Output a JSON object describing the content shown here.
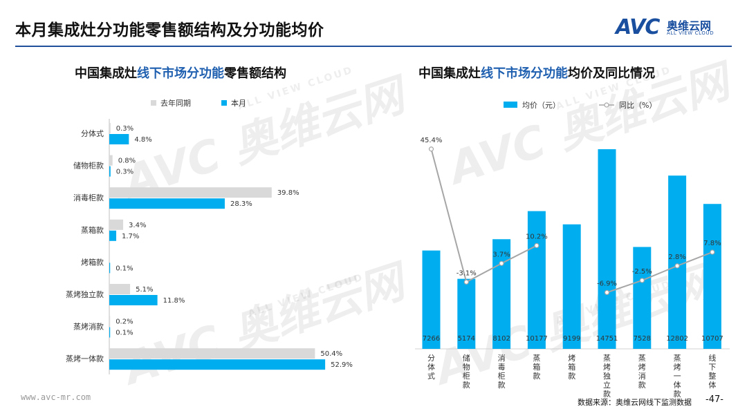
{
  "page": {
    "title": "本月集成灶分功能零售额结构及分功能均价",
    "logo_mark": "AVC",
    "logo_cn": "奥维云网",
    "logo_en": "ALL VIEW CLOUD",
    "footer_url": "www.avc-mr.com",
    "footer_source": "数据来源：奥维云网线下监测数据",
    "page_number": "-47-"
  },
  "watermark": {
    "mark": "AVC 奥维云网",
    "sub": "ALL VIEW CLOUD"
  },
  "colors": {
    "blue": "#00aeef",
    "gray": "#d9d9d9",
    "title_highlight": "#1f5fb0",
    "line": "#a6a6a6"
  },
  "left_chart": {
    "title_parts": [
      "中国集成灶",
      "线下市场分功能",
      "零售额结构"
    ]
  },
  "right_chart": {
    "title_parts": [
      "中国集成灶",
      "线下市场分功能",
      "均价及同比情况"
    ]
  },
  "chart_data": [
    {
      "type": "bar",
      "orientation": "horizontal",
      "categories": [
        "分体式",
        "储物柜款",
        "消毒柜款",
        "蒸箱款",
        "烤箱款",
        "蒸烤独立款",
        "蒸烤消款",
        "蒸烤一体款"
      ],
      "series": [
        {
          "name": "去年同期",
          "values": [
            0.3,
            0.8,
            39.8,
            3.4,
            null,
            5.1,
            0.2,
            50.4
          ],
          "labels": [
            "0.3%",
            "0.8%",
            "39.8%",
            "3.4%",
            "",
            "5.1%",
            "0.2%",
            "50.4%"
          ],
          "color": "#d9d9d9"
        },
        {
          "name": "本月",
          "values": [
            4.8,
            0.3,
            28.3,
            1.7,
            0.1,
            11.8,
            0.1,
            52.9
          ],
          "labels": [
            "4.8%",
            "0.3%",
            "28.3%",
            "1.7%",
            "0.1%",
            "11.8%",
            "0.1%",
            "52.9%"
          ],
          "color": "#00aeef"
        }
      ],
      "xlim": [
        0,
        60
      ],
      "legend": "top"
    },
    {
      "type": "bar",
      "categories": [
        "分体式",
        "储物柜款",
        "消毒柜款",
        "蒸箱款",
        "烤箱款",
        "蒸烤独立款",
        "蒸烤消款",
        "蒸烤一体款",
        "线下整体"
      ],
      "series": [
        {
          "name": "均价（元）",
          "kind": "bar",
          "values": [
            7266,
            5174,
            8102,
            10177,
            9199,
            14751,
            7528,
            12802,
            10707
          ],
          "labels": [
            "7266",
            "5174",
            "8102",
            "10177",
            "9199",
            "14751",
            "7528",
            "12802",
            "10707"
          ],
          "color": "#00aeef"
        },
        {
          "name": "同比（%）",
          "kind": "line",
          "values": [
            45.4,
            -3.1,
            3.7,
            10.2,
            null,
            -6.9,
            -2.5,
            2.8,
            7.8
          ],
          "labels": [
            "45.4%",
            "-3.1%",
            "3.7%",
            "10.2%",
            "",
            "-6.9%",
            "-2.5%",
            "2.8%",
            "7.8%"
          ],
          "color": "#a6a6a6"
        }
      ],
      "legend": "top"
    }
  ]
}
